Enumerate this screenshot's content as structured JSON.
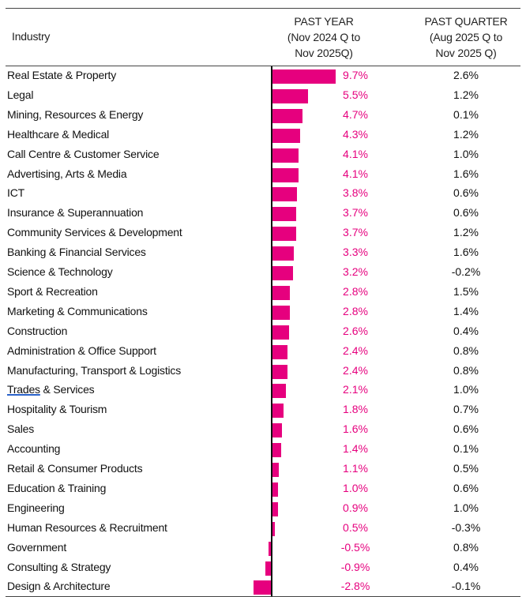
{
  "header": {
    "industry": "Industry",
    "past_year": [
      "PAST YEAR",
      "(Nov 2024 Q to",
      "Nov 2025Q)"
    ],
    "past_quarter": [
      "PAST QUARTER",
      "(Aug 2025 Q to",
      "Nov 2025 Q)"
    ]
  },
  "colors": {
    "bar": "#e6007e",
    "year_text": "#e6007e",
    "quarter_text": "#111111"
  },
  "chart_data": {
    "type": "table",
    "title": "",
    "columns": [
      "Industry",
      "PAST YEAR (Nov 2024 Q to Nov 2025Q)",
      "PAST QUARTER (Aug 2025 Q to Nov 2025 Q)"
    ],
    "rows": [
      {
        "industry": "Real Estate & Property",
        "past_year": 9.7,
        "past_year_label": "9.7%",
        "past_quarter_label": "2.6%"
      },
      {
        "industry": "Legal",
        "past_year": 5.5,
        "past_year_label": "5.5%",
        "past_quarter_label": "1.2%"
      },
      {
        "industry": "Mining, Resources & Energy",
        "past_year": 4.7,
        "past_year_label": "4.7%",
        "past_quarter_label": "0.1%"
      },
      {
        "industry": "Healthcare & Medical",
        "past_year": 4.3,
        "past_year_label": "4.3%",
        "past_quarter_label": "1.2%"
      },
      {
        "industry": "Call Centre & Customer Service",
        "past_year": 4.1,
        "past_year_label": "4.1%",
        "past_quarter_label": "1.0%"
      },
      {
        "industry": "Advertising, Arts & Media",
        "past_year": 4.1,
        "past_year_label": "4.1%",
        "past_quarter_label": "1.6%"
      },
      {
        "industry": "ICT",
        "past_year": 3.8,
        "past_year_label": "3.8%",
        "past_quarter_label": "0.6%"
      },
      {
        "industry": "Insurance & Superannuation",
        "past_year": 3.7,
        "past_year_label": "3.7%",
        "past_quarter_label": "0.6%"
      },
      {
        "industry": "Community Services & Development",
        "past_year": 3.7,
        "past_year_label": "3.7%",
        "past_quarter_label": "1.2%"
      },
      {
        "industry": "Banking & Financial Services",
        "past_year": 3.3,
        "past_year_label": "3.3%",
        "past_quarter_label": "1.6%"
      },
      {
        "industry": "Science & Technology",
        "past_year": 3.2,
        "past_year_label": "3.2%",
        "past_quarter_label": "-0.2%"
      },
      {
        "industry": "Sport & Recreation",
        "past_year": 2.8,
        "past_year_label": "2.8%",
        "past_quarter_label": "1.5%"
      },
      {
        "industry": "Marketing & Communications",
        "past_year": 2.8,
        "past_year_label": "2.8%",
        "past_quarter_label": "1.4%"
      },
      {
        "industry": "Construction",
        "past_year": 2.6,
        "past_year_label": "2.6%",
        "past_quarter_label": "0.4%"
      },
      {
        "industry": "Administration & Office Support",
        "past_year": 2.4,
        "past_year_label": "2.4%",
        "past_quarter_label": "0.8%"
      },
      {
        "industry": "Manufacturing, Transport & Logistics",
        "past_year": 2.4,
        "past_year_label": "2.4%",
        "past_quarter_label": "0.8%"
      },
      {
        "industry": "Trades & Services",
        "underlined_word": "Trades",
        "rest": " & Services",
        "past_year": 2.1,
        "past_year_label": "2.1%",
        "past_quarter_label": "1.0%"
      },
      {
        "industry": "Hospitality & Tourism",
        "past_year": 1.8,
        "past_year_label": "1.8%",
        "past_quarter_label": "0.7%"
      },
      {
        "industry": "Sales",
        "past_year": 1.6,
        "past_year_label": "1.6%",
        "past_quarter_label": "0.6%"
      },
      {
        "industry": "Accounting",
        "past_year": 1.4,
        "past_year_label": "1.4%",
        "past_quarter_label": "0.1%"
      },
      {
        "industry": "Retail & Consumer Products",
        "past_year": 1.1,
        "past_year_label": "1.1%",
        "past_quarter_label": "0.5%"
      },
      {
        "industry": "Education & Training",
        "past_year": 1.0,
        "past_year_label": "1.0%",
        "past_quarter_label": "0.6%"
      },
      {
        "industry": "Engineering",
        "past_year": 0.9,
        "past_year_label": "0.9%",
        "past_quarter_label": "1.0%"
      },
      {
        "industry": "Human Resources & Recruitment",
        "past_year": 0.5,
        "past_year_label": "0.5%",
        "past_quarter_label": "-0.3%"
      },
      {
        "industry": "Government",
        "past_year": -0.5,
        "past_year_label": "-0.5%",
        "past_quarter_label": "0.8%"
      },
      {
        "industry": "Consulting & Strategy",
        "past_year": -0.9,
        "past_year_label": "-0.9%",
        "past_quarter_label": "0.4%"
      },
      {
        "industry": "Design & Architecture",
        "past_year": -2.8,
        "past_year_label": "-2.8%",
        "past_quarter_label": "-0.1%"
      }
    ],
    "bar_series": "past_year",
    "xlim": [
      -2.8,
      9.7
    ]
  }
}
